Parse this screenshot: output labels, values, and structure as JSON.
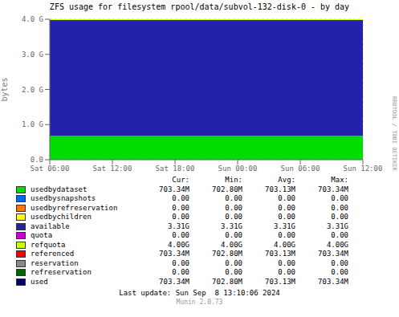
{
  "chart_data": {
    "type": "area",
    "title": "ZFS usage for filesystem rpool/data/subvol-132-disk-0 - by day",
    "y_label": "bytes",
    "stacked": true,
    "grid": true,
    "categories": [
      "Sat 06:00",
      "Sat 12:00",
      "Sat 18:00",
      "Sun 00:00",
      "Sun 06:00",
      "Sun 12:00"
    ],
    "series": [
      {
        "name": "usedbydataset",
        "color": "#00dd00",
        "type": "area",
        "values": [
          737091174,
          737091174,
          737091174,
          737091174,
          737091174,
          737091174
        ]
      },
      {
        "name": "available",
        "color": "#2222aa",
        "type": "area",
        "values": [
          3557876122,
          3557876122,
          3557876122,
          3557876122,
          3557876122,
          3557876122
        ]
      },
      {
        "name": "refquota",
        "color": "#ccff00",
        "type": "line",
        "values": [
          4294967296,
          4294967296,
          4294967296,
          4294967296,
          4294967296,
          4294967296
        ]
      }
    ],
    "ylim": [
      0,
      4294967296
    ],
    "yticks": [
      {
        "value": 0,
        "label": "0.0"
      },
      {
        "value": 1073741824,
        "label": "1.0 G"
      },
      {
        "value": 2147483648,
        "label": "2.0 G"
      },
      {
        "value": 3221225472,
        "label": "3.0 G"
      },
      {
        "value": 4294967296,
        "label": "4.0 G"
      }
    ],
    "annotations": [
      "RRDTOOL / TOBI OETIKER",
      "Last update: Sun Sep  8 13:10:06 2024",
      "Munin 2.0.73"
    ],
    "legend_table": {
      "headers": [
        "Cur:",
        "Min:",
        "Avg:",
        "Max:"
      ],
      "rows": [
        {
          "label": "usedbydataset",
          "color": "#00dd00",
          "cur": "703.34M",
          "min": "702.80M",
          "avg": "703.13M",
          "max": "703.34M"
        },
        {
          "label": "usedbysnapshots",
          "color": "#0066ff",
          "cur": "0.00",
          "min": "0.00",
          "avg": "0.00",
          "max": "0.00"
        },
        {
          "label": "usedbyrefreservation",
          "color": "#ff7700",
          "cur": "0.00",
          "min": "0.00",
          "avg": "0.00",
          "max": "0.00"
        },
        {
          "label": "usedbychildren",
          "color": "#ffff00",
          "cur": "0.00",
          "min": "0.00",
          "avg": "0.00",
          "max": "0.00"
        },
        {
          "label": "available",
          "color": "#2222aa",
          "cur": "3.31G",
          "min": "3.31G",
          "avg": "3.31G",
          "max": "3.31G"
        },
        {
          "label": "quota",
          "color": "#cc00cc",
          "cur": "0.00",
          "min": "0.00",
          "avg": "0.00",
          "max": "0.00"
        },
        {
          "label": "refquota",
          "color": "#ccff00",
          "cur": "4.00G",
          "min": "4.00G",
          "avg": "4.00G",
          "max": "4.00G"
        },
        {
          "label": "referenced",
          "color": "#ff0000",
          "cur": "703.34M",
          "min": "702.80M",
          "avg": "703.13M",
          "max": "703.34M"
        },
        {
          "label": "reservation",
          "color": "#888888",
          "cur": "0.00",
          "min": "0.00",
          "avg": "0.00",
          "max": "0.00"
        },
        {
          "label": "refreservation",
          "color": "#006600",
          "cur": "0.00",
          "min": "0.00",
          "avg": "0.00",
          "max": "0.00"
        },
        {
          "label": "used",
          "color": "#000066",
          "cur": "703.34M",
          "min": "702.80M",
          "avg": "703.13M",
          "max": "703.34M"
        }
      ]
    }
  }
}
